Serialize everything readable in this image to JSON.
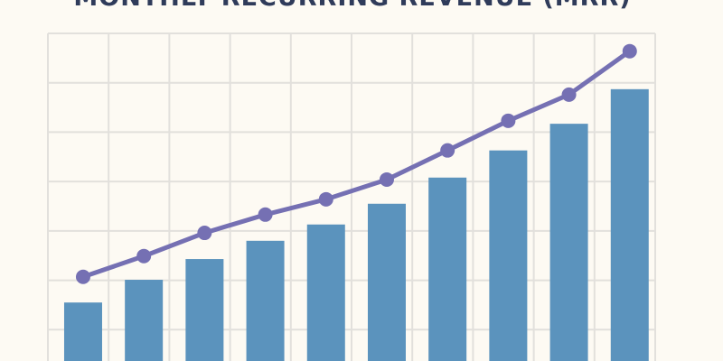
{
  "chart_data": {
    "type": "bar",
    "title": "MONTHLY RECURRING REVENUE (MRR)",
    "categories": [
      null,
      null,
      null,
      null,
      null,
      null,
      null,
      null,
      null,
      null
    ],
    "series": [
      {
        "type": "bar",
        "color": "#5b93bd",
        "values": [
          1.55,
          2.01,
          2.43,
          2.8,
          3.13,
          3.55,
          4.08,
          4.63,
          5.17,
          5.87
        ]
      },
      {
        "type": "line",
        "color": "#7570b3",
        "values": [
          2.07,
          2.49,
          2.96,
          3.33,
          3.64,
          4.04,
          4.63,
          5.23,
          5.76,
          6.64
        ]
      }
    ],
    "ylim": [
      0,
      7
    ],
    "yticks": [
      0,
      1,
      2,
      3,
      4,
      5,
      6,
      7
    ],
    "grid": true
  }
}
